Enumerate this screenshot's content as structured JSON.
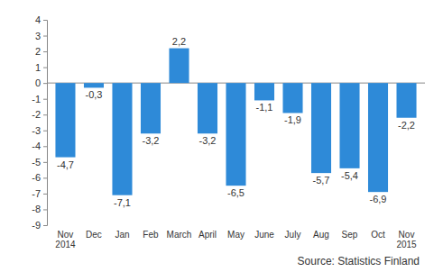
{
  "chart_data": {
    "type": "bar",
    "categories": [
      "Nov 2014",
      "Dec",
      "Jan",
      "Feb",
      "March",
      "April",
      "May",
      "June",
      "July",
      "Aug",
      "Sep",
      "Oct",
      "Nov 2015"
    ],
    "values": [
      -4.7,
      -0.3,
      -7.1,
      -3.2,
      2.2,
      -3.2,
      -6.5,
      -1.1,
      -1.9,
      -5.7,
      -5.4,
      -6.9,
      -2.2
    ],
    "value_labels": [
      "-4,7",
      "-0,3",
      "-7,1",
      "-3,2",
      "2,2",
      "-3,2",
      "-6,5",
      "-1,1",
      "-1,9",
      "-5,7",
      "-5,4",
      "-6,9",
      "-2,2"
    ],
    "color": "#2e8ad8",
    "ylim": [
      -9,
      4
    ],
    "yticks": [
      -9,
      -8,
      -7,
      -6,
      -5,
      -4,
      -3,
      -2,
      -1,
      0,
      1,
      2,
      3,
      4
    ],
    "grid": false,
    "data_labels": true,
    "annotations": [
      "Source: Statistics Finland"
    ]
  }
}
